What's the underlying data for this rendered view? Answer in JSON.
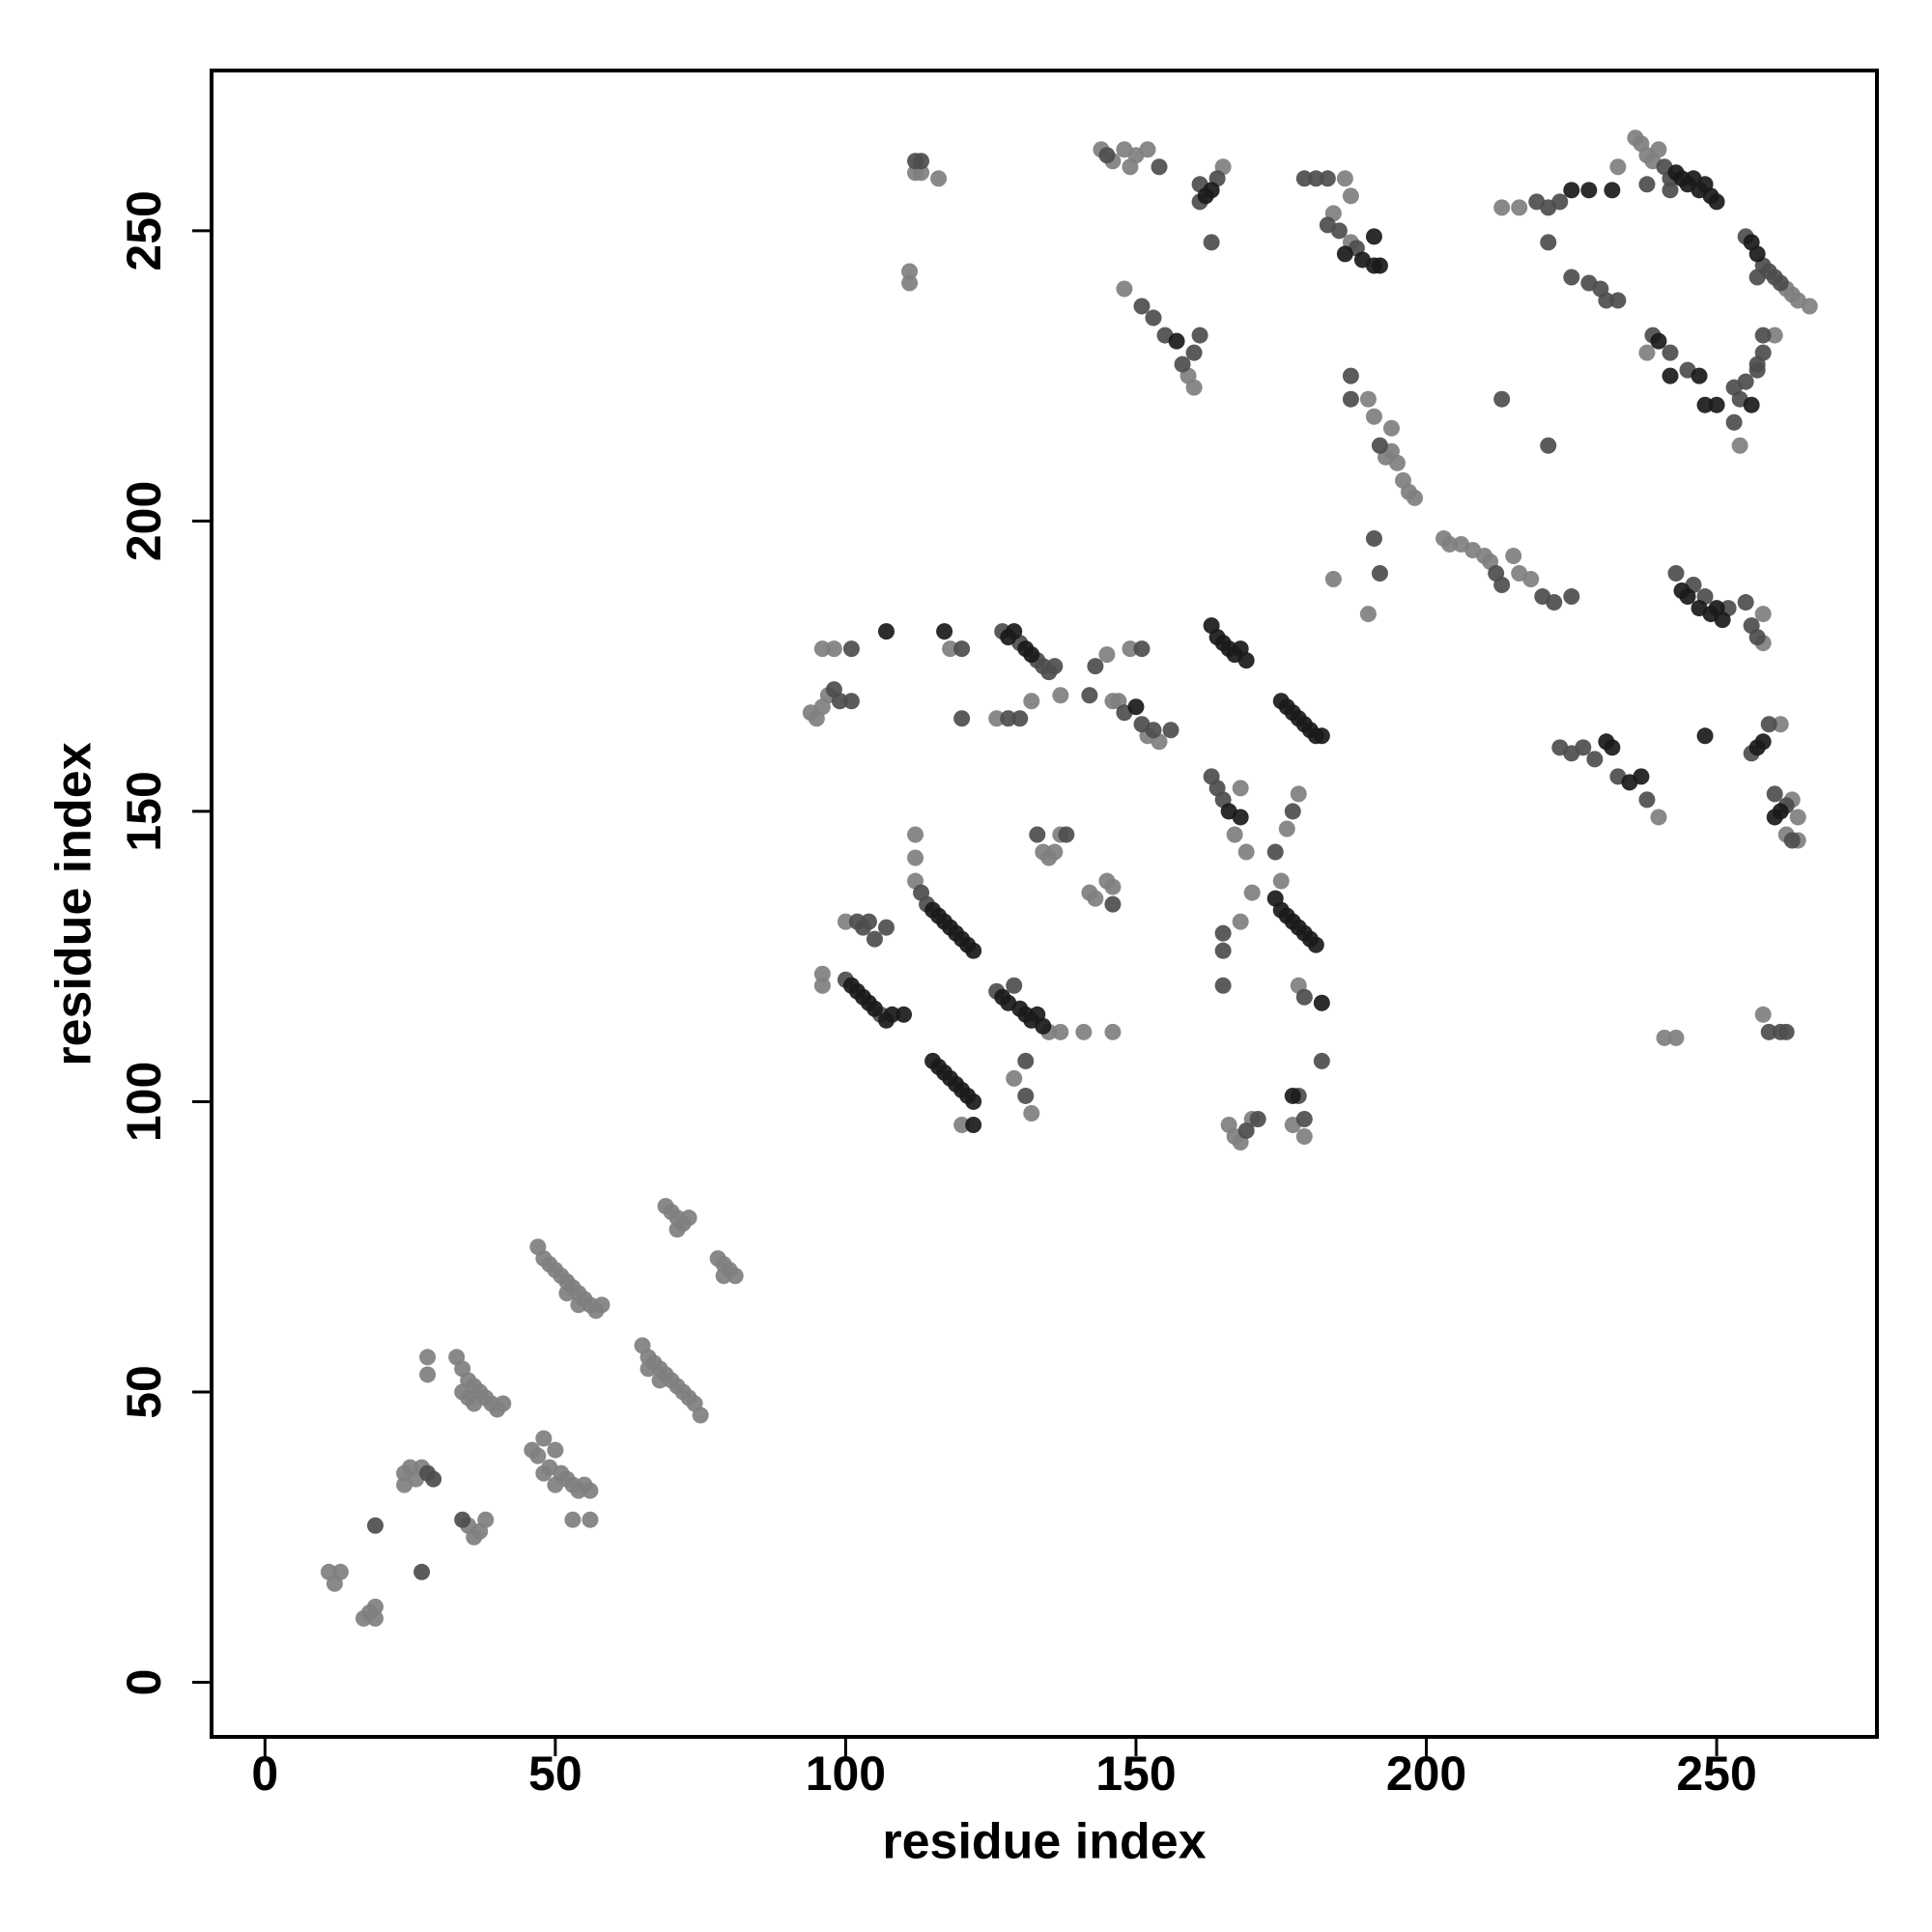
{
  "chart_data": {
    "type": "scatter",
    "xlabel": "residue index",
    "ylabel": "residue index",
    "xlim": [
      -9.2,
      277.6
    ],
    "ylim": [
      -9.4,
      277.6
    ],
    "xticks": [
      0,
      50,
      100,
      150,
      200,
      250
    ],
    "yticks": [
      0,
      50,
      100,
      150,
      200,
      250
    ],
    "series": [
      {
        "color": "#7f7f7f",
        "x": [
          11,
          12,
          13,
          17,
          18,
          19,
          19,
          24,
          24,
          25,
          26,
          27,
          36,
          37,
          38,
          35,
          33,
          34,
          35,
          36,
          37,
          38,
          39,
          40,
          41,
          28,
          28,
          34,
          35,
          36,
          46,
          47,
          48,
          49,
          50,
          51,
          52,
          53,
          54,
          55,
          56,
          48,
          50,
          53,
          56,
          47,
          48,
          49,
          50,
          51,
          52,
          53,
          54,
          55,
          56,
          57,
          58,
          54,
          52,
          65,
          66,
          67,
          68,
          69,
          70,
          71,
          72,
          73,
          74,
          75,
          66,
          68,
          69,
          70,
          71,
          72,
          73,
          71,
          78,
          79,
          80,
          81,
          79,
          112,
          113,
          116,
          111,
          111,
          94,
          95,
          96,
          97,
          96,
          98,
          96,
          96,
          100,
          112,
          112,
          112,
          120,
          118,
          126,
          137,
          132,
          134,
          135,
          136,
          137,
          135,
          137,
          141,
          146,
          129,
          132,
          142,
          143,
          145,
          146,
          145,
          146,
          147,
          149,
          152,
          154,
          144,
          146,
          148,
          149,
          150,
          152,
          148,
          159,
          160,
          165,
          168,
          167,
          169,
          166,
          167,
          168,
          170,
          168,
          170,
          175,
          176,
          178,
          178,
          177,
          179,
          186,
          184,
          187,
          187,
          190,
          191,
          194,
          193,
          194,
          195,
          196,
          197,
          198,
          184,
          190,
          203,
          204,
          206,
          208,
          210,
          211,
          215,
          216,
          218,
          213,
          216,
          233,
          236,
          237,
          238,
          239,
          240,
          238,
          254,
          264,
          266,
          260,
          263,
          262,
          258,
          258,
          240,
          241,
          243,
          258,
          263,
          264,
          264,
          262,
          261
        ],
        "values": [
          19,
          17,
          19,
          11,
          12,
          13,
          11,
          36,
          34,
          37,
          35,
          37,
          25,
          26,
          28,
          27,
          56,
          54,
          52,
          51,
          50,
          49,
          48,
          47,
          48,
          56,
          53,
          50,
          49,
          48,
          40,
          39,
          42,
          37,
          40,
          36,
          35,
          34,
          33,
          34,
          33,
          36,
          34,
          28,
          28,
          75,
          73,
          72,
          71,
          70,
          69,
          68,
          67,
          66,
          65,
          64,
          65,
          65,
          67,
          58,
          56,
          55,
          54,
          53,
          52,
          51,
          50,
          49,
          48,
          46,
          54,
          52,
          82,
          81,
          80,
          79,
          80,
          78,
          73,
          72,
          71,
          70,
          70,
          260,
          260,
          259,
          243,
          241,
          167,
          166,
          168,
          170,
          178,
          178,
          122,
          120,
          131,
          146,
          142,
          138,
          96,
          178,
          166,
          170,
          169,
          143,
          142,
          143,
          146,
          112,
          112,
          112,
          112,
          104,
          98,
          136,
          135,
          138,
          137,
          177,
          169,
          169,
          178,
          163,
          162,
          264,
          262,
          264,
          261,
          263,
          264,
          240,
          225,
          223,
          261,
          154,
          146,
          143,
          96,
          94,
          93,
          97,
          131,
          136,
          138,
          147,
          153,
          120,
          96,
          94,
          259,
          253,
          256,
          248,
          221,
          218,
          216,
          211,
          212,
          210,
          207,
          205,
          204,
          190,
          184,
          197,
          196,
          196,
          195,
          194,
          193,
          194,
          191,
          190,
          254,
          254,
          261,
          266,
          265,
          263,
          262,
          264,
          229,
          213,
          238,
          237,
          232,
          239,
          240,
          184,
          179,
          149,
          111,
          111,
          115,
          152,
          149,
          145,
          146,
          165
        ]
      },
      {
        "color": "#4d4d4d",
        "x": [
          19,
          27,
          28,
          29,
          34,
          112,
          113,
          98,
          99,
          101,
          101,
          102,
          103,
          104,
          105,
          107,
          100,
          106,
          113,
          114,
          120,
          120,
          128,
          130,
          127,
          130,
          133,
          134,
          135,
          136,
          133,
          138,
          126,
          129,
          131,
          131,
          142,
          143,
          146,
          148,
          151,
          153,
          156,
          151,
          145,
          154,
          151,
          153,
          155,
          158,
          160,
          161,
          161,
          164,
          161,
          163,
          163,
          164,
          165,
          165,
          165,
          165,
          169,
          171,
          174,
          177,
          179,
          182,
          179,
          178,
          179,
          181,
          183,
          183,
          185,
          188,
          187,
          187,
          192,
          191,
          192,
          212,
          213,
          220,
          222,
          225,
          219,
          221,
          223,
          221,
          225,
          228,
          230,
          231,
          233,
          213,
          221,
          241,
          242,
          238,
          242,
          239,
          242,
          245,
          253,
          253,
          254,
          255,
          257,
          258,
          258,
          257,
          255,
          258,
          259,
          260,
          261,
          257,
          243,
          246,
          248,
          252,
          255,
          256,
          257,
          223,
          225,
          227,
          229,
          233,
          238,
          256,
          259,
          260,
          262,
          263,
          259,
          261,
          262
        ],
        "values": [
          27,
          19,
          36,
          35,
          28,
          262,
          262,
          171,
          169,
          169,
          178,
          131,
          130,
          131,
          128,
          130,
          121,
          115,
          136,
          134,
          178,
          166,
          166,
          166,
          181,
          179,
          176,
          175,
          174,
          175,
          146,
          146,
          119,
          120,
          101,
          107,
          170,
          175,
          134,
          167,
          165,
          164,
          164,
          178,
          263,
          261,
          237,
          235,
          232,
          227,
          229,
          232,
          258,
          259,
          255,
          248,
          156,
          154,
          152,
          129,
          126,
          120,
          95,
          97,
          143,
          150,
          118,
          107,
          97,
          101,
          259,
          259,
          259,
          251,
          250,
          247,
          225,
          221,
          213,
          197,
          191,
          191,
          189,
          187,
          186,
          187,
          255,
          254,
          255,
          248,
          242,
          241,
          240,
          238,
          238,
          221,
          213,
          261,
          259,
          258,
          257,
          232,
          229,
          226,
          223,
          217,
          221,
          224,
          227,
          229,
          232,
          226,
          249,
          244,
          243,
          242,
          241,
          242,
          191,
          189,
          187,
          185,
          186,
          182,
          180,
          161,
          160,
          161,
          159,
          156,
          152,
          160,
          165,
          153,
          151,
          145,
          112,
          112,
          112
        ]
      },
      {
        "color": "#1a1a1a",
        "x": [
          107,
          117,
          101,
          102,
          103,
          104,
          105,
          107,
          108,
          110,
          115,
          116,
          117,
          118,
          119,
          120,
          121,
          122,
          115,
          116,
          117,
          118,
          119,
          120,
          121,
          122,
          122,
          128,
          129,
          131,
          132,
          127,
          128,
          130,
          131,
          132,
          133,
          134,
          150,
          162,
          163,
          157,
          163,
          164,
          165,
          166,
          167,
          168,
          169,
          166,
          168,
          174,
          175,
          176,
          177,
          178,
          179,
          180,
          181,
          182,
          177,
          175,
          176,
          177,
          178,
          179,
          180,
          181,
          182,
          186,
          189,
          191,
          191,
          192,
          228,
          225,
          232,
          243,
          244,
          245,
          246,
          247,
          248,
          249,
          250,
          240,
          242,
          247,
          248,
          250,
          256,
          256,
          257,
          244,
          245,
          247,
          249,
          250,
          251,
          248,
          231,
          232,
          235,
          237,
          257,
          258,
          261,
          260
        ],
        "values": [
          181,
          181,
          120,
          119,
          118,
          117,
          116,
          114,
          115,
          115,
          133,
          132,
          131,
          130,
          129,
          128,
          127,
          126,
          107,
          106,
          105,
          104,
          103,
          102,
          101,
          100,
          96,
          180,
          181,
          178,
          177,
          118,
          117,
          116,
          115,
          114,
          115,
          113,
          168,
          256,
          257,
          231,
          182,
          180,
          179,
          178,
          177,
          178,
          176,
          150,
          149,
          135,
          133,
          132,
          131,
          130,
          129,
          128,
          127,
          117,
          101,
          169,
          168,
          167,
          166,
          165,
          164,
          163,
          163,
          246,
          245,
          244,
          249,
          244,
          257,
          257,
          257,
          260,
          259,
          258,
          259,
          257,
          258,
          256,
          255,
          231,
          225,
          225,
          220,
          220,
          220,
          248,
          246,
          188,
          187,
          185,
          184,
          185,
          183,
          163,
          162,
          161,
          155,
          156,
          161,
          162,
          150,
          149
        ]
      }
    ]
  }
}
